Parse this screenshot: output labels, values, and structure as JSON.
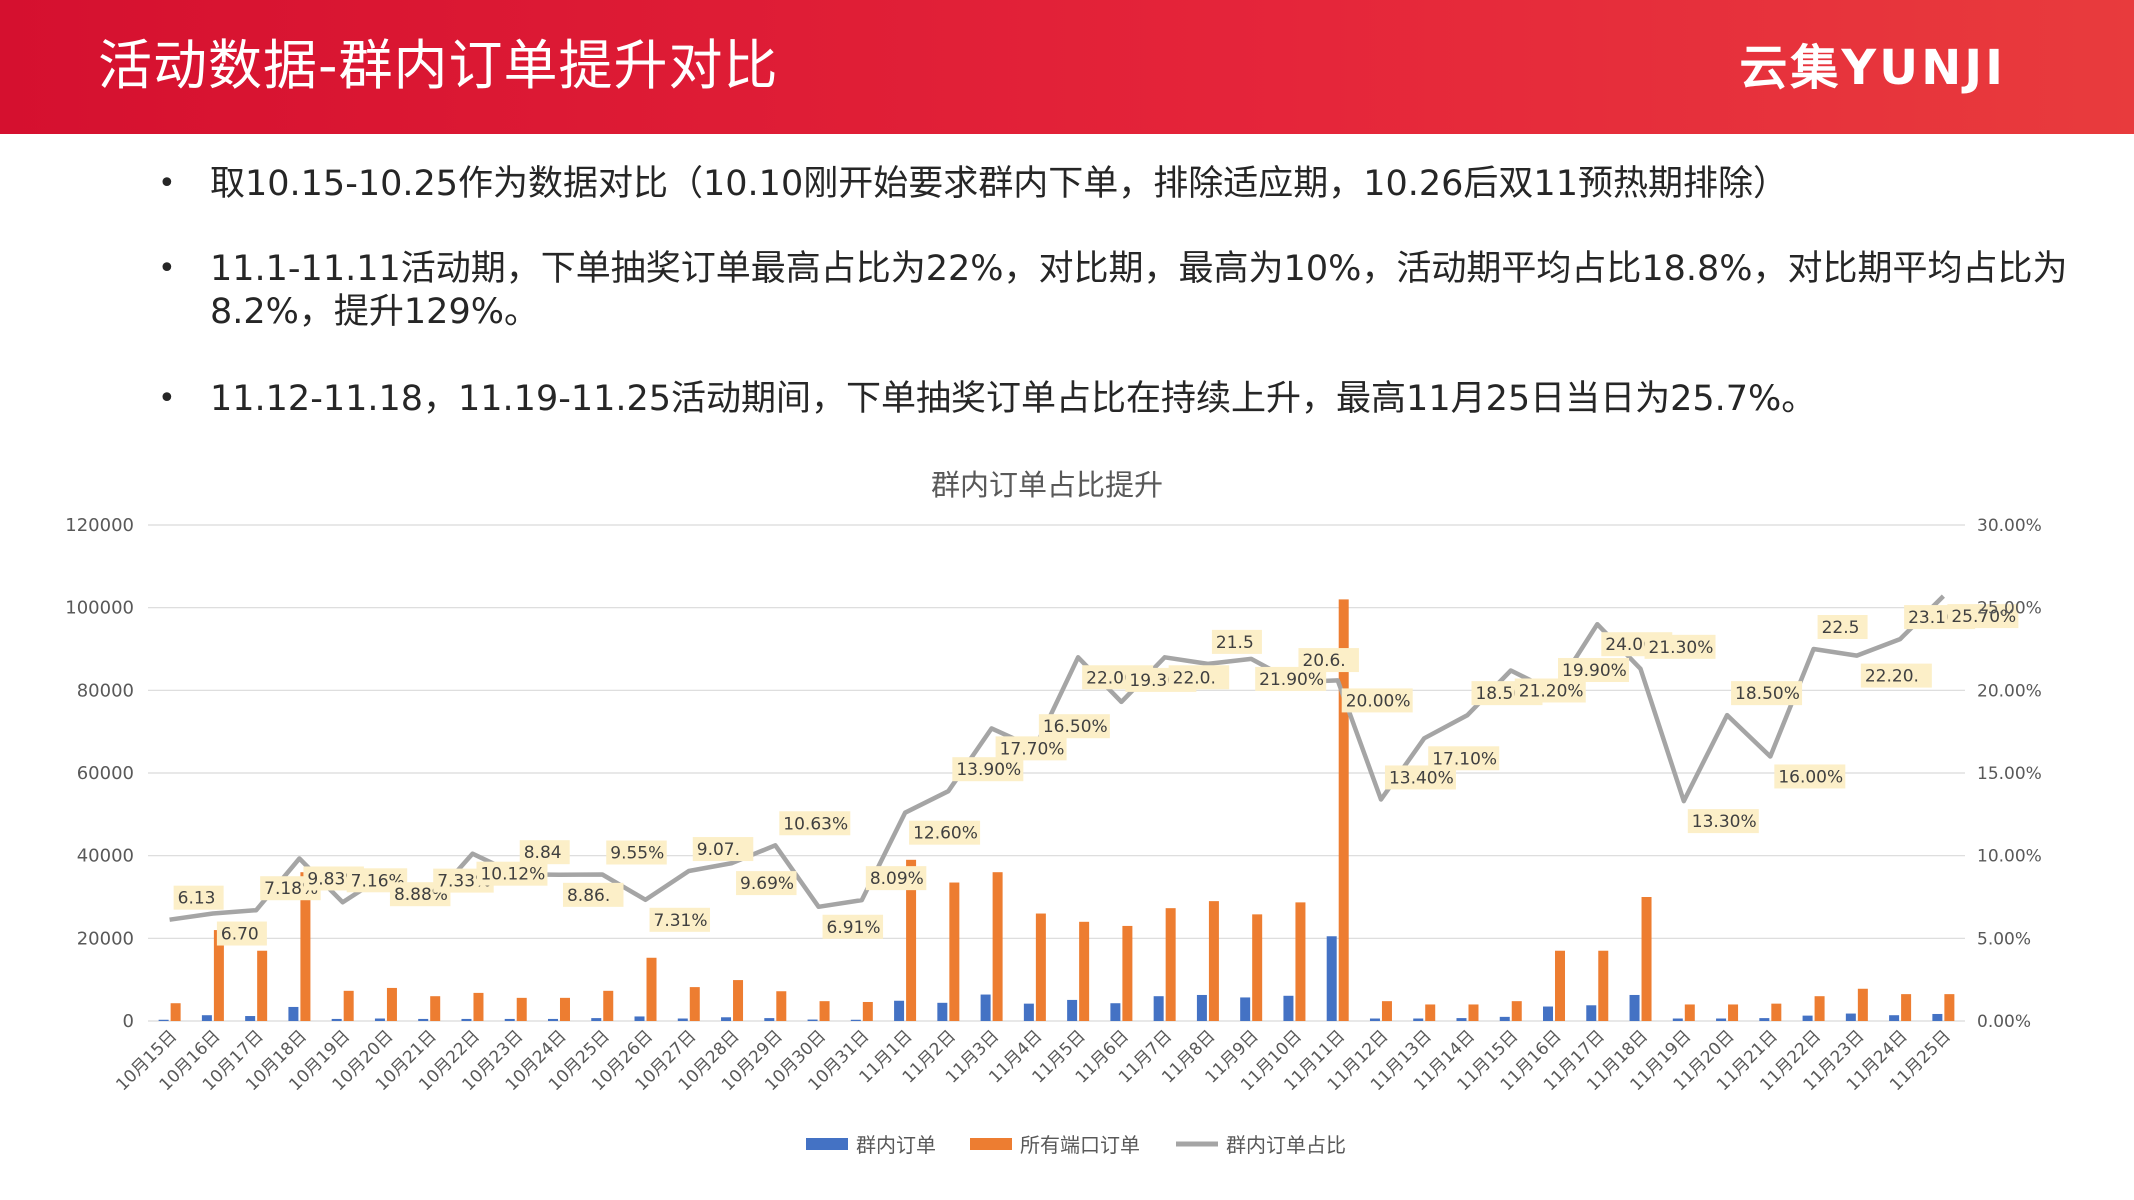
{
  "header": {
    "title": "活动数据-群内订单提升对比",
    "logo": "云集YUNJI"
  },
  "bullets": [
    "取10.15-10.25作为数据对比（10.10刚开始要求群内下单，排除适应期，10.26后双11预热期排除）",
    "11.1-11.11活动期，下单抽奖订单最高占比为22%，对比期，最高为10%，活动期平均占比18.8%，对比期平均占比为",
    "8.2%，提升129%。",
    "11.12-11.18，11.19-11.25活动期间，下单抽奖订单占比在持续上升，最高11月25日当日为25.7%。"
  ],
  "colors": {
    "header_red": "#d5102f",
    "bar_group": "#4472c4",
    "bar_all": "#ed7d31",
    "line_ratio": "#a5a5a5",
    "label_bg": "#fcefc8"
  },
  "chart_data": {
    "type": "bar",
    "title": "群内订单占比提升",
    "categories": [
      "10月15日",
      "10月16日",
      "10月17日",
      "10月18日",
      "10月19日",
      "10月20日",
      "10月21日",
      "10月22日",
      "10月23日",
      "10月24日",
      "10月25日",
      "10月26日",
      "10月27日",
      "10月28日",
      "10月29日",
      "10月30日",
      "10月31日",
      "11月1日",
      "11月2日",
      "11月3日",
      "11月4日",
      "11月5日",
      "11月6日",
      "11月7日",
      "11月8日",
      "11月9日",
      "11月10日",
      "11月11日",
      "11月12日",
      "11月13日",
      "11月14日",
      "11月15日",
      "11月16日",
      "11月17日",
      "11月18日",
      "11月19日",
      "11月20日",
      "11月21日",
      "11月22日",
      "11月23日",
      "11月24日",
      "11月25日"
    ],
    "y_left": {
      "ticks": [
        "0",
        "20000",
        "40000",
        "60000",
        "80000",
        "100000",
        "120000"
      ],
      "range": [
        0,
        120000
      ]
    },
    "y_right": {
      "ticks": [
        "0.00%",
        "5.00%",
        "10.00%",
        "15.00%",
        "20.00%",
        "25.00%",
        "30.00%"
      ],
      "range": [
        0,
        0.3
      ]
    },
    "legend_position": "bottom",
    "grid": true,
    "series": [
      {
        "name": "群内订单",
        "axis": "left",
        "kind": "bar",
        "values": [
          300,
          1400,
          1200,
          3400,
          500,
          600,
          500,
          500,
          500,
          500,
          700,
          1100,
          600,
          900,
          700,
          350,
          300,
          4900,
          4400,
          6400,
          4200,
          5100,
          4300,
          6000,
          6300,
          5700,
          6100,
          20500,
          600,
          600,
          700,
          1000,
          3500,
          3800,
          6300,
          600,
          600,
          700,
          1300,
          1800,
          1400,
          1700
        ]
      },
      {
        "name": "所有端口订单",
        "axis": "left",
        "kind": "bar",
        "values": [
          4300,
          22000,
          17000,
          36000,
          7300,
          8000,
          6000,
          6800,
          5600,
          5600,
          7300,
          15300,
          8200,
          9900,
          7200,
          4800,
          4600,
          39000,
          33500,
          36000,
          26000,
          24000,
          23000,
          27300,
          29000,
          25800,
          28700,
          102000,
          4800,
          4000,
          4000,
          4800,
          17000,
          17000,
          30000,
          4000,
          4000,
          4200,
          6000,
          7800,
          6500,
          6500
        ]
      },
      {
        "name": "群内订单占比",
        "axis": "right",
        "kind": "line",
        "values": [
          0.0613,
          0.065,
          0.067,
          0.0983,
          0.0718,
          0.0888,
          0.0716,
          0.1012,
          0.0888,
          0.0884,
          0.0886,
          0.0733,
          0.0907,
          0.0955,
          0.1063,
          0.0691,
          0.0731,
          0.126,
          0.139,
          0.177,
          0.165,
          0.22,
          0.193,
          0.22,
          0.216,
          0.219,
          0.205,
          0.206,
          0.134,
          0.171,
          0.185,
          0.212,
          0.199,
          0.24,
          0.213,
          0.133,
          0.185,
          0.16,
          0.225,
          0.221,
          0.231,
          0.257
        ]
      }
    ],
    "data_labels": [
      "6.13",
      "6.70",
      "7.18%",
      "9.83%",
      "7.16%",
      "8.88%",
      "7.33%",
      "10.12%",
      "8.84",
      "8.86.",
      "9.55%",
      "7.31%",
      "9.07.",
      "9.69%",
      "10.63%",
      "6.91%",
      "8.09%",
      "12.60%",
      "13.90%",
      "17.70%",
      "16.50%",
      "22.00%",
      "19.30%",
      "22.0.",
      "21.5",
      "21.90%",
      "20.6.",
      "20.00%",
      "13.40%",
      "17.10%",
      "18.50%",
      "21.20%",
      "19.90%",
      "24.00%",
      "21.30%",
      "13.30%",
      "18.50%",
      "16.00%",
      "22.5",
      "22.20.",
      "23.10%",
      "25.70%"
    ]
  }
}
